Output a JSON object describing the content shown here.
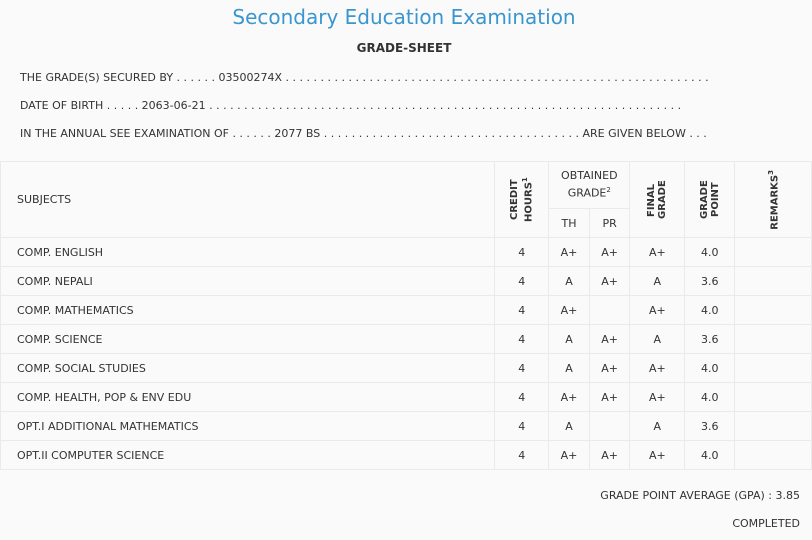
{
  "header": {
    "title": "Secondary Education Examination",
    "subtitle": "GRADE-SHEET"
  },
  "info": {
    "line1": "THE GRADE(S) SECURED BY . . . . . . 03500274X . . . . . . . . . . . . . . . . . . . . . . . . . . . . . . . . . . . . . . . . . . . . . . . . . . . . . . . . . . . . .",
    "line2": "DATE OF BIRTH . . . . . 2063-06-21 . . . . . . . . . . . . . . . . . . . . . . . . . . . . . . . . . . . . . . . . . . . . . . . . . . . . . . . . . . . . . . . . . . . .",
    "line3": "IN THE ANNUAL SEE EXAMINATION OF . . . . . . 2077 BS . . . . . . . . . . . . . . . . . . . . . . . . . . . . . . . . . . . . . ARE GIVEN BELOW . . ."
  },
  "table": {
    "headers": {
      "subjects": "SUBJECTS",
      "credit_hours": "CREDIT HOURS",
      "credit_sup": "1",
      "obtained_grade": "OBTAINED GRADE",
      "obtained_sup": "2",
      "th": "TH",
      "pr": "PR",
      "final_grade": "FINAL GRADE",
      "grade_point": "GRADE POINT",
      "remarks": "REMARKS",
      "remarks_sup": "3"
    },
    "rows": [
      {
        "subject": "COMP. ENGLISH",
        "credit": "4",
        "th": "A+",
        "pr": "A+",
        "final": "A+",
        "gp": "4.0",
        "remarks": ""
      },
      {
        "subject": "COMP. NEPALI",
        "credit": "4",
        "th": "A",
        "pr": "A+",
        "final": "A",
        "gp": "3.6",
        "remarks": ""
      },
      {
        "subject": "COMP. MATHEMATICS",
        "credit": "4",
        "th": "A+",
        "pr": "",
        "final": "A+",
        "gp": "4.0",
        "remarks": ""
      },
      {
        "subject": "COMP. SCIENCE",
        "credit": "4",
        "th": "A",
        "pr": "A+",
        "final": "A",
        "gp": "3.6",
        "remarks": ""
      },
      {
        "subject": "COMP. SOCIAL STUDIES",
        "credit": "4",
        "th": "A",
        "pr": "A+",
        "final": "A+",
        "gp": "4.0",
        "remarks": ""
      },
      {
        "subject": "COMP. HEALTH, POP & ENV EDU",
        "credit": "4",
        "th": "A+",
        "pr": "A+",
        "final": "A+",
        "gp": "4.0",
        "remarks": ""
      },
      {
        "subject": "OPT.I ADDITIONAL MATHEMATICS",
        "credit": "4",
        "th": "A",
        "pr": "",
        "final": "A",
        "gp": "3.6",
        "remarks": ""
      },
      {
        "subject": "OPT.II COMPUTER SCIENCE",
        "credit": "4",
        "th": "A+",
        "pr": "A+",
        "final": "A+",
        "gp": "4.0",
        "remarks": ""
      }
    ]
  },
  "footer": {
    "gpa": "GRADE POINT AVERAGE (GPA) : 3.85",
    "status": "COMPLETED"
  },
  "colors": {
    "title": "#3a96cf",
    "background": "#fafafa",
    "border": "#eaeaea"
  }
}
